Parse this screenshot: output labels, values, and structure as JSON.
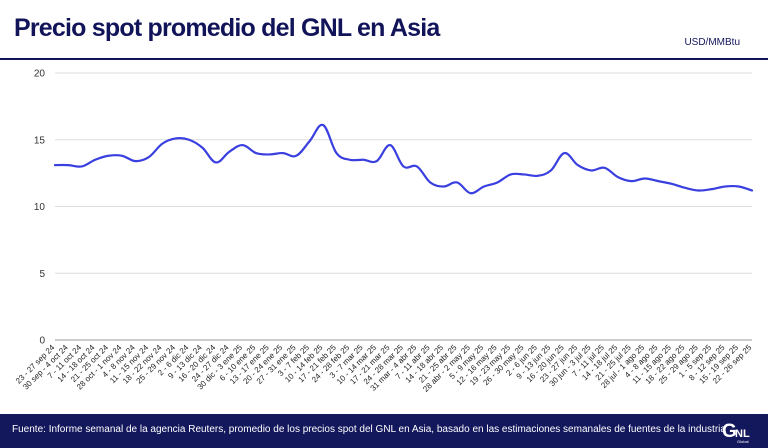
{
  "header": {
    "title": "Precio spot promedio del GNL en Asia",
    "unit": "USD/MMBtu"
  },
  "footer": {
    "source": "Fuente: Informe semanal de la agencia Reuters, promedio de los precios spot del GNL en Asia, basado en las estimaciones semanales de fuentes de la industria",
    "logo_text": "GNL",
    "logo_subtext": "Global"
  },
  "colors": {
    "line": "#3a3fe0",
    "title": "#12145a",
    "footer_bg": "#13175c",
    "grid": "#dddddd"
  },
  "chart_data": {
    "type": "line",
    "title": "",
    "xlabel": "",
    "ylabel": "",
    "ylim": [
      0,
      20
    ],
    "yticks": [
      0,
      5,
      10,
      15,
      20
    ],
    "grid": "horizontal",
    "categories": [
      "23 - 27 sep 24",
      "30 sep - 4 oct 24",
      "7 - 11 oct 24",
      "14 - 18 oct 24",
      "21 - 25 oct 24",
      "28 oct - 1 nov 24",
      "4 - 8 nov 24",
      "11 - 15 nov 24",
      "18 - 22 nov 24",
      "25 - 29 nov 24",
      "2 - 6 dic 24",
      "9 - 13 dic 24",
      "16 - 20 dic 24",
      "24 - 27 dic 24",
      "30 dic - 3 ene 25",
      "6 - 10 ene 25",
      "13 - 17 ene 25",
      "20 - 24 ene 25",
      "27 - 31 ene 25",
      "3 - 7 feb 25",
      "10 - 14 feb 25",
      "17 - 21 feb 25",
      "24 - 28 feb 25",
      "3 - 7 mar 25",
      "10 - 14 mar 25",
      "17 - 21 mar 25",
      "24 - 28 mar 25",
      "31 mar - 4 abr 25",
      "7 - 11 abr 25",
      "14 - 18 abr 25",
      "21 - 25 abr 25",
      "28 abr - 2 may 25",
      "5 - 9 may 25",
      "12 - 16 may 25",
      "19 - 23 may 25",
      "26 - 30 may 25",
      "2 - 6 jun 25",
      "9 - 13 jun 25",
      "16 - 20 jun 25",
      "23 - 27 jun 25",
      "30 jun - 3 jul 25",
      "7 - 11 jul 25",
      "14 - 18 jul 25",
      "21 - 25 jul 25",
      "28 jul - 1 ago 25",
      "4 - 8 ago 25",
      "11 - 15 ago 25",
      "18 - 22 ago 25",
      "25 - 29 ago 25",
      "1 - 5 sep 25",
      "8 - 12 sep 25",
      "15 - 19 sep 25",
      "22 - 26 sep 25"
    ],
    "series": [
      {
        "name": "",
        "values": [
          13.1,
          13.1,
          13.0,
          13.5,
          13.8,
          13.8,
          13.4,
          13.7,
          14.7,
          15.1,
          15.0,
          14.4,
          13.3,
          14.1,
          14.6,
          14.0,
          13.9,
          14.0,
          13.8,
          14.9,
          16.1,
          14.0,
          13.5,
          13.5,
          13.4,
          14.6,
          13.0,
          13.0,
          11.8,
          11.5,
          11.8,
          11.0,
          11.5,
          11.8,
          12.4,
          12.4,
          12.3,
          12.7,
          14.0,
          13.1,
          12.7,
          12.9,
          12.2,
          11.9,
          12.1,
          11.9,
          11.7,
          11.4,
          11.2,
          11.3,
          11.5,
          11.5,
          11.2
        ]
      }
    ]
  }
}
